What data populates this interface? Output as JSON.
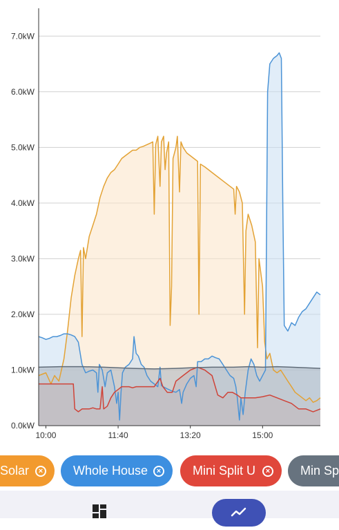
{
  "chart_data": {
    "type": "area",
    "y_ticks": [
      "0.0kW",
      "1.0kW",
      "2.0kW",
      "3.0kW",
      "4.0kW",
      "5.0kW",
      "6.0kW",
      "7.0kW"
    ],
    "x_ticks": [
      "10:00",
      "11:40",
      "13:20",
      "15:00"
    ],
    "ylim": [
      0,
      7.5
    ],
    "xlim_minutes": [
      590,
      980
    ],
    "x_tick_minutes": [
      600,
      700,
      800,
      900
    ],
    "grid": true,
    "series": [
      {
        "name": "Solar",
        "color": "#e3a234",
        "fill": "#fbe4c6",
        "points": [
          [
            590,
            0.9
          ],
          [
            600,
            0.95
          ],
          [
            607,
            0.75
          ],
          [
            612,
            0.9
          ],
          [
            618,
            0.8
          ],
          [
            625,
            1.2
          ],
          [
            630,
            1.7
          ],
          [
            635,
            2.3
          ],
          [
            640,
            2.7
          ],
          [
            645,
            3.0
          ],
          [
            648,
            3.15
          ],
          [
            650,
            1.6
          ],
          [
            652,
            3.2
          ],
          [
            655,
            3.0
          ],
          [
            660,
            3.4
          ],
          [
            665,
            3.6
          ],
          [
            670,
            3.8
          ],
          [
            675,
            4.1
          ],
          [
            680,
            4.3
          ],
          [
            685,
            4.45
          ],
          [
            690,
            4.55
          ],
          [
            695,
            4.6
          ],
          [
            700,
            4.7
          ],
          [
            705,
            4.8
          ],
          [
            710,
            4.85
          ],
          [
            715,
            4.9
          ],
          [
            720,
            4.95
          ],
          [
            725,
            4.95
          ],
          [
            730,
            5.0
          ],
          [
            735,
            5.02
          ],
          [
            740,
            5.05
          ],
          [
            745,
            5.08
          ],
          [
            748,
            5.1
          ],
          [
            750,
            3.8
          ],
          [
            752,
            5.05
          ],
          [
            755,
            5.2
          ],
          [
            758,
            4.3
          ],
          [
            760,
            5.1
          ],
          [
            763,
            5.2
          ],
          [
            765,
            4.6
          ],
          [
            767,
            4.9
          ],
          [
            770,
            5.1
          ],
          [
            772,
            1.8
          ],
          [
            774,
            2.5
          ],
          [
            776,
            4.8
          ],
          [
            780,
            5.0
          ],
          [
            782,
            5.2
          ],
          [
            785,
            4.2
          ],
          [
            787,
            5.1
          ],
          [
            790,
            5.0
          ],
          [
            795,
            4.9
          ],
          [
            800,
            4.85
          ],
          [
            805,
            4.8
          ],
          [
            810,
            4.75
          ],
          [
            812,
            2.0
          ],
          [
            814,
            4.7
          ],
          [
            820,
            4.65
          ],
          [
            825,
            4.6
          ],
          [
            830,
            4.55
          ],
          [
            835,
            4.5
          ],
          [
            840,
            4.45
          ],
          [
            845,
            4.4
          ],
          [
            850,
            4.35
          ],
          [
            855,
            4.3
          ],
          [
            860,
            4.25
          ],
          [
            862,
            3.8
          ],
          [
            864,
            4.3
          ],
          [
            868,
            4.2
          ],
          [
            872,
            4.0
          ],
          [
            875,
            2.0
          ],
          [
            877,
            3.5
          ],
          [
            880,
            3.8
          ],
          [
            885,
            3.6
          ],
          [
            890,
            3.3
          ],
          [
            893,
            1.4
          ],
          [
            895,
            3.0
          ],
          [
            900,
            2.5
          ],
          [
            903,
            1.5
          ],
          [
            906,
            1.2
          ],
          [
            910,
            1.3
          ],
          [
            915,
            1.0
          ],
          [
            920,
            0.95
          ],
          [
            925,
            1.0
          ],
          [
            930,
            0.9
          ],
          [
            935,
            0.8
          ],
          [
            940,
            0.7
          ],
          [
            945,
            0.6
          ],
          [
            950,
            0.55
          ],
          [
            955,
            0.5
          ],
          [
            960,
            0.45
          ],
          [
            965,
            0.5
          ],
          [
            970,
            0.42
          ],
          [
            975,
            0.45
          ],
          [
            980,
            0.5
          ]
        ]
      },
      {
        "name": "Whole House",
        "color": "#4b93d6",
        "fill": "#c9def2",
        "points": [
          [
            590,
            1.6
          ],
          [
            595,
            1.58
          ],
          [
            600,
            1.55
          ],
          [
            605,
            1.57
          ],
          [
            610,
            1.6
          ],
          [
            615,
            1.6
          ],
          [
            620,
            1.62
          ],
          [
            625,
            1.65
          ],
          [
            630,
            1.65
          ],
          [
            635,
            1.63
          ],
          [
            640,
            1.6
          ],
          [
            645,
            1.5
          ],
          [
            650,
            1.1
          ],
          [
            655,
            0.95
          ],
          [
            660,
            0.98
          ],
          [
            665,
            1.0
          ],
          [
            670,
            0.95
          ],
          [
            672,
            0.6
          ],
          [
            674,
            1.1
          ],
          [
            678,
            1.0
          ],
          [
            682,
            0.7
          ],
          [
            685,
            0.95
          ],
          [
            690,
            1.0
          ],
          [
            695,
            0.7
          ],
          [
            698,
            0.4
          ],
          [
            700,
            0.6
          ],
          [
            702,
            0.1
          ],
          [
            704,
            0.6
          ],
          [
            706,
            0.95
          ],
          [
            710,
            1.05
          ],
          [
            715,
            1.1
          ],
          [
            720,
            1.2
          ],
          [
            722,
            1.6
          ],
          [
            725,
            1.3
          ],
          [
            728,
            1.25
          ],
          [
            732,
            1.1
          ],
          [
            736,
            1.05
          ],
          [
            740,
            0.9
          ],
          [
            745,
            0.8
          ],
          [
            750,
            0.75
          ],
          [
            755,
            0.7
          ],
          [
            758,
            1.05
          ],
          [
            760,
            0.72
          ],
          [
            765,
            0.68
          ],
          [
            770,
            0.65
          ],
          [
            775,
            0.62
          ],
          [
            780,
            0.6
          ],
          [
            785,
            0.65
          ],
          [
            788,
            0.4
          ],
          [
            790,
            0.6
          ],
          [
            795,
            0.75
          ],
          [
            800,
            0.85
          ],
          [
            805,
            0.9
          ],
          [
            808,
            0.7
          ],
          [
            810,
            1.15
          ],
          [
            815,
            1.15
          ],
          [
            820,
            1.2
          ],
          [
            825,
            1.2
          ],
          [
            830,
            1.25
          ],
          [
            835,
            1.22
          ],
          [
            840,
            1.2
          ],
          [
            845,
            1.1
          ],
          [
            850,
            1.0
          ],
          [
            855,
            0.9
          ],
          [
            860,
            0.85
          ],
          [
            863,
            0.7
          ],
          [
            865,
            0.5
          ],
          [
            868,
            0.1
          ],
          [
            870,
            0.5
          ],
          [
            873,
            0.2
          ],
          [
            876,
            0.6
          ],
          [
            880,
            1.0
          ],
          [
            884,
            1.2
          ],
          [
            888,
            1.1
          ],
          [
            892,
            0.9
          ],
          [
            896,
            0.8
          ],
          [
            900,
            0.9
          ],
          [
            904,
            1.0
          ],
          [
            907,
            6.0
          ],
          [
            910,
            6.5
          ],
          [
            915,
            6.6
          ],
          [
            920,
            6.65
          ],
          [
            923,
            6.7
          ],
          [
            926,
            6.6
          ],
          [
            928,
            4.0
          ],
          [
            930,
            1.8
          ],
          [
            935,
            1.7
          ],
          [
            940,
            1.85
          ],
          [
            945,
            1.8
          ],
          [
            950,
            1.95
          ],
          [
            955,
            2.05
          ],
          [
            960,
            2.1
          ],
          [
            965,
            2.2
          ],
          [
            970,
            2.3
          ],
          [
            975,
            2.4
          ],
          [
            980,
            2.35
          ]
        ]
      },
      {
        "name": "Mini Split U",
        "color": "#cf4338",
        "fill": "#e3bdb8",
        "points": [
          [
            590,
            0.75
          ],
          [
            620,
            0.75
          ],
          [
            638,
            0.75
          ],
          [
            640,
            0.3
          ],
          [
            645,
            0.25
          ],
          [
            650,
            0.3
          ],
          [
            655,
            0.3
          ],
          [
            660,
            0.3
          ],
          [
            665,
            0.32
          ],
          [
            670,
            0.3
          ],
          [
            675,
            0.3
          ],
          [
            678,
            0.7
          ],
          [
            680,
            0.3
          ],
          [
            685,
            0.35
          ],
          [
            690,
            0.5
          ],
          [
            695,
            0.6
          ],
          [
            700,
            0.65
          ],
          [
            705,
            0.7
          ],
          [
            710,
            0.7
          ],
          [
            715,
            0.7
          ],
          [
            720,
            0.68
          ],
          [
            725,
            0.7
          ],
          [
            730,
            0.7
          ],
          [
            740,
            0.7
          ],
          [
            745,
            0.7
          ],
          [
            750,
            0.7
          ],
          [
            758,
            0.85
          ],
          [
            762,
            0.7
          ],
          [
            768,
            0.6
          ],
          [
            775,
            0.6
          ],
          [
            780,
            0.8
          ],
          [
            790,
            0.9
          ],
          [
            800,
            1.0
          ],
          [
            810,
            1.05
          ],
          [
            820,
            1.0
          ],
          [
            825,
            0.95
          ],
          [
            830,
            0.9
          ],
          [
            838,
            0.55
          ],
          [
            845,
            0.5
          ],
          [
            852,
            0.6
          ],
          [
            858,
            0.6
          ],
          [
            865,
            0.55
          ],
          [
            870,
            0.5
          ],
          [
            880,
            0.5
          ],
          [
            890,
            0.5
          ],
          [
            900,
            0.52
          ],
          [
            910,
            0.55
          ],
          [
            920,
            0.5
          ],
          [
            930,
            0.45
          ],
          [
            940,
            0.4
          ],
          [
            950,
            0.3
          ],
          [
            960,
            0.3
          ],
          [
            970,
            0.25
          ],
          [
            980,
            0.3
          ]
        ]
      },
      {
        "name": "Min Split",
        "color": "#5f6b78",
        "fill": "#a9b2bd",
        "points": [
          [
            590,
            1.05
          ],
          [
            620,
            1.06
          ],
          [
            650,
            1.06
          ],
          [
            680,
            1.05
          ],
          [
            700,
            1.04
          ],
          [
            720,
            1.03
          ],
          [
            750,
            1.02
          ],
          [
            780,
            1.03
          ],
          [
            800,
            1.04
          ],
          [
            830,
            1.05
          ],
          [
            860,
            1.05
          ],
          [
            880,
            1.06
          ],
          [
            900,
            1.05
          ],
          [
            920,
            1.06
          ],
          [
            940,
            1.05
          ],
          [
            960,
            1.04
          ],
          [
            980,
            1.03
          ]
        ]
      }
    ]
  },
  "chips": [
    {
      "label": "Solar",
      "color": "#f29a2e"
    },
    {
      "label": "Whole House",
      "color": "#3d8fe0"
    },
    {
      "label": "Mini Split U",
      "color": "#e0473b"
    },
    {
      "label": "Min Split",
      "color": "#67737f"
    }
  ],
  "chip_close_glyph": "×",
  "nav": {
    "left_icon": "dashboard-icon",
    "right_icon": "trend-line-icon",
    "right_color": "#3f51b5"
  }
}
